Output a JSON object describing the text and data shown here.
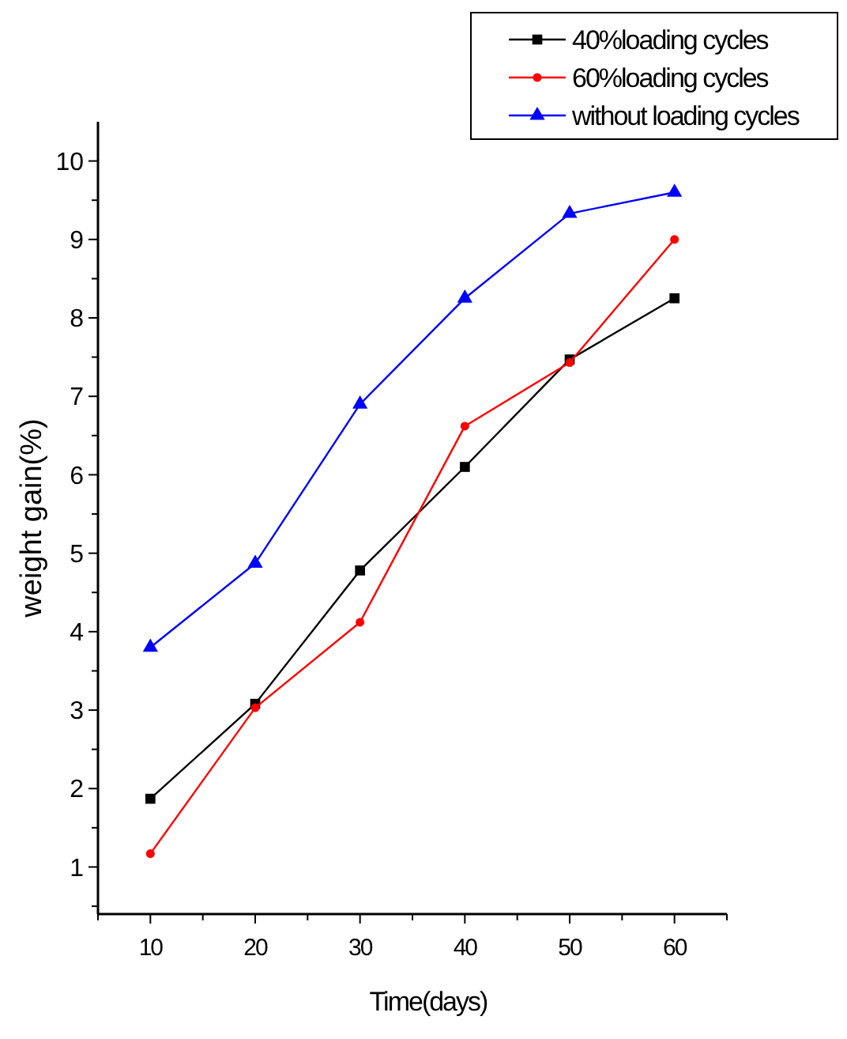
{
  "chart_data": {
    "type": "line",
    "xlabel": "Time(days)",
    "ylabel": "weight gain(%)",
    "x": [
      10,
      20,
      30,
      40,
      50,
      60
    ],
    "series": [
      {
        "name": "40%loading cycles",
        "color": "#000000",
        "marker": "square",
        "values": [
          1.87,
          3.08,
          4.78,
          6.1,
          7.47,
          8.25
        ]
      },
      {
        "name": "60%loading cycles",
        "color": "#ff0000",
        "marker": "circle",
        "values": [
          1.17,
          3.03,
          4.12,
          6.62,
          7.43,
          9.0
        ]
      },
      {
        "name": "without loading cycles",
        "color": "#0000ff",
        "marker": "triangle",
        "values": [
          3.8,
          4.87,
          6.9,
          8.25,
          9.33,
          9.6
        ]
      }
    ],
    "xlim": [
      5,
      65
    ],
    "xticks": [
      {
        "value": 5,
        "label": null
      },
      10,
      {
        "value": 15,
        "label": null
      },
      20,
      {
        "value": 25,
        "label": null
      },
      30,
      {
        "value": 35,
        "label": null
      },
      40,
      {
        "value": 45,
        "label": null
      },
      50,
      {
        "value": 55,
        "label": null
      },
      60,
      {
        "value": 65,
        "label": null
      }
    ],
    "ylim": [
      0.4,
      10.5
    ],
    "yticks": [
      {
        "value": 0.5,
        "label": null
      },
      1,
      {
        "value": 1.5,
        "label": null
      },
      2,
      {
        "value": 2.5,
        "label": null
      },
      3,
      {
        "value": 3.5,
        "label": null
      },
      4,
      {
        "value": 4.5,
        "label": null
      },
      5,
      {
        "value": 5.5,
        "label": null
      },
      6,
      {
        "value": 6.5,
        "label": null
      },
      7,
      {
        "value": 7.5,
        "label": null
      },
      8,
      {
        "value": 8.5,
        "label": null
      },
      9,
      {
        "value": 9.5,
        "label": null
      },
      10
    ],
    "legend": "top right",
    "grid": false,
    "line_style": "solid"
  }
}
